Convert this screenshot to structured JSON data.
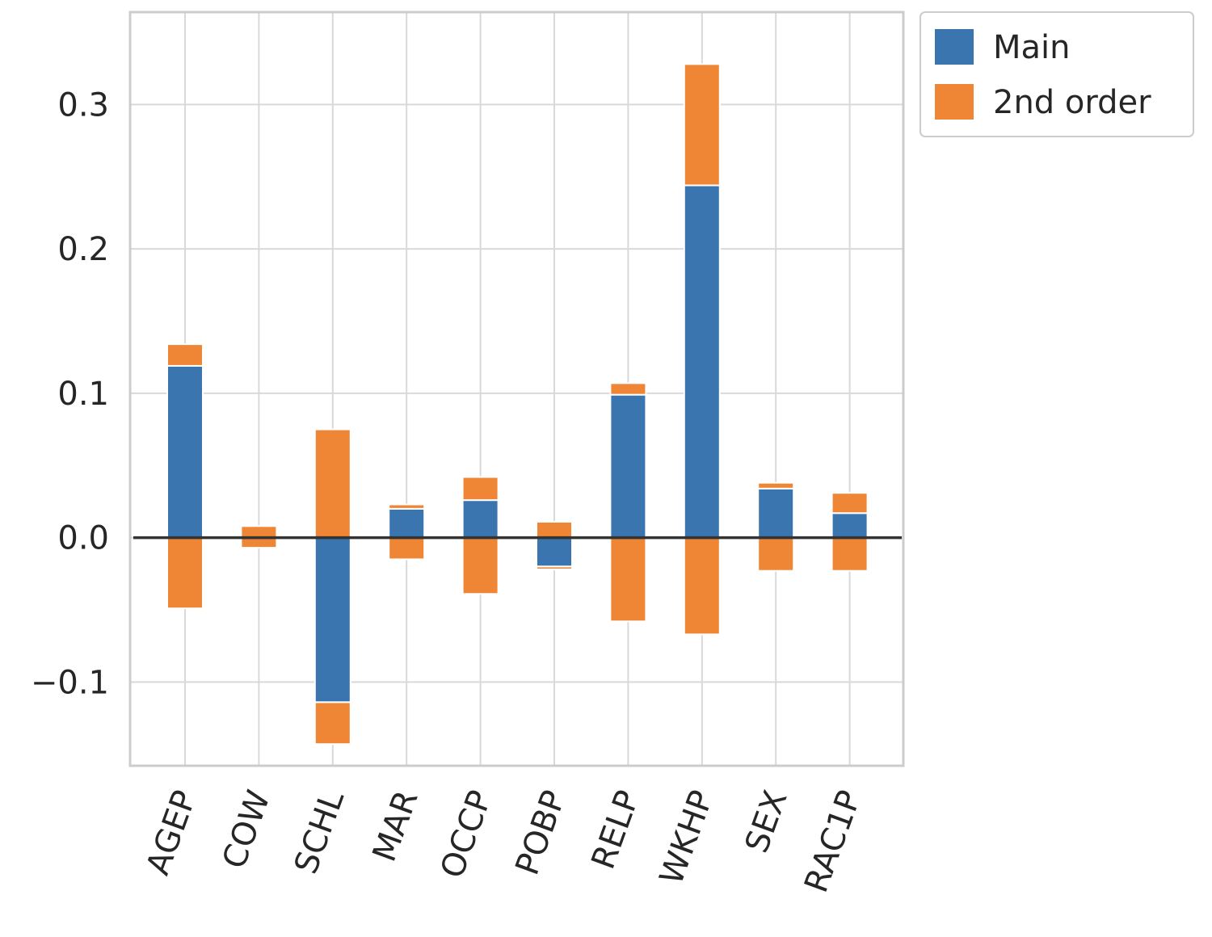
{
  "chart_data": {
    "type": "bar",
    "stacked": true,
    "categories": [
      "AGEP",
      "COW",
      "SCHL",
      "MAR",
      "OCCP",
      "POBP",
      "RELP",
      "WKHP",
      "SEX",
      "RAC1P"
    ],
    "series": [
      {
        "name": "Main",
        "color": "#3b75af",
        "values": [
          0.119,
          0.0,
          -0.114,
          0.02,
          0.026,
          -0.02,
          0.099,
          0.244,
          0.034,
          0.017
        ]
      },
      {
        "name": "2nd order",
        "positive": [
          0.015,
          0.008,
          0.075,
          0.003,
          0.016,
          0.011,
          0.008,
          0.084,
          0.004,
          0.014
        ],
        "negative": [
          -0.049,
          -0.007,
          -0.029,
          -0.015,
          -0.039,
          -0.002,
          -0.058,
          -0.067,
          -0.023,
          -0.023
        ],
        "color": "#ef8636"
      }
    ],
    "yticks": [
      "−0.1",
      "0.0",
      "0.1",
      "0.2",
      "0.3"
    ],
    "ytick_values": [
      -0.1,
      0.0,
      0.1,
      0.2,
      0.3
    ],
    "ylim": [
      -0.158,
      0.364
    ],
    "xlabel": "",
    "ylabel": "",
    "title": "",
    "grid": true,
    "legend_position": "outside top-right",
    "zero_line": true
  }
}
